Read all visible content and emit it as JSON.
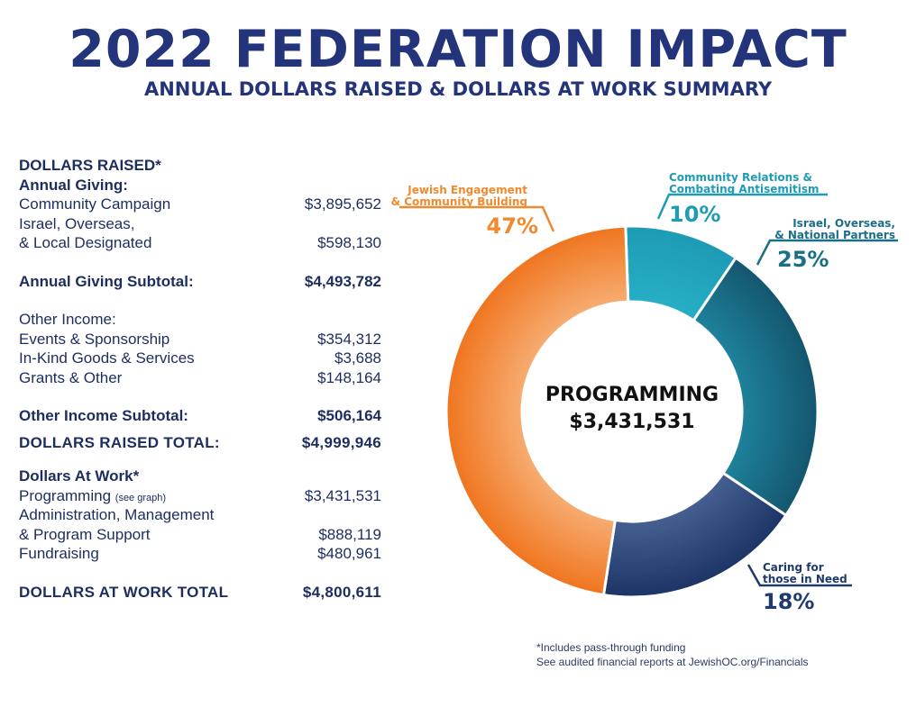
{
  "header": {
    "title": "2022 FEDERATION IMPACT",
    "subtitle": "ANNUAL DOLLARS RAISED & DOLLARS AT WORK SUMMARY"
  },
  "ledger": {
    "dollars_raised_heading": "DOLLARS RAISED*",
    "annual_giving_heading": "Annual Giving:",
    "community_campaign": {
      "label": "Community Campaign",
      "value": "$3,895,652"
    },
    "israel_line1": "Israel, Overseas,",
    "israel_line2": {
      "label": "& Local Designated",
      "value": "$598,130"
    },
    "annual_subtotal": {
      "label": "Annual Giving Subtotal:",
      "value": "$4,493,782"
    },
    "other_income_heading": "Other Income:",
    "events": {
      "label": "Events & Sponsorship",
      "value": "$354,312"
    },
    "inkind": {
      "label": "In-Kind Goods & Services",
      "value": "$3,688"
    },
    "grants": {
      "label": "Grants & Other",
      "value": "$148,164"
    },
    "other_subtotal": {
      "label": "Other Income Subtotal:",
      "value": "$506,164"
    },
    "raised_total": {
      "label": "DOLLARS RAISED TOTAL:",
      "value": "$4,999,946"
    },
    "at_work_heading": "Dollars At Work*",
    "programming": {
      "label": "Programming",
      "note": "(see graph)",
      "value": "$3,431,531"
    },
    "admin_line1": "Administration, Management",
    "admin_line2": {
      "label": "& Program Support",
      "value": "$888,119"
    },
    "fundraising": {
      "label": "Fundraising",
      "value": "$480,961"
    },
    "work_total": {
      "label": "DOLLARS AT WORK TOTAL",
      "value": "$4,800,611"
    }
  },
  "chart_data": {
    "type": "pie",
    "center_label": "PROGRAMMING",
    "center_value": "$3,431,531",
    "slices": [
      {
        "label_lines": [
          "Community Relations &",
          "Combating Antisemitism"
        ],
        "value": 10,
        "display": "10%",
        "color": "#1e9bb5"
      },
      {
        "label_lines": [
          "Israel, Overseas,",
          "& National Partners"
        ],
        "value": 25,
        "display": "25%",
        "color": "#1a6f86"
      },
      {
        "label_lines": [
          "Caring for",
          "those in Need"
        ],
        "value": 18,
        "display": "18%",
        "color": "#1f3a6e"
      },
      {
        "label_lines": [
          "Jewish Engagement",
          "& Community Building"
        ],
        "value": 47,
        "display": "47%",
        "color": "#f08a2e"
      }
    ]
  },
  "footnote": {
    "line1": "*Includes pass-through funding",
    "line2": "See audited financial reports at JewishOC.org/Financials"
  }
}
